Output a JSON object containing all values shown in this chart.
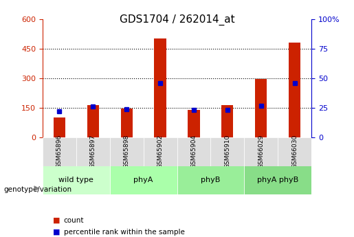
{
  "title": "GDS1704 / 262014_at",
  "samples": [
    "GSM65896",
    "GSM65897",
    "GSM65898",
    "GSM65902",
    "GSM65904",
    "GSM65910",
    "GSM66029",
    "GSM66030"
  ],
  "count_values": [
    100,
    165,
    145,
    500,
    140,
    165,
    295,
    480
  ],
  "percentile_values": [
    22,
    26,
    24,
    46,
    23,
    23,
    27,
    46
  ],
  "groups": [
    {
      "label": "wild type",
      "start": 0,
      "end": 2,
      "color": "#ccffcc"
    },
    {
      "label": "phyA",
      "start": 2,
      "end": 4,
      "color": "#aaffaa"
    },
    {
      "label": "phyB",
      "start": 4,
      "end": 6,
      "color": "#99ee99"
    },
    {
      "label": "phyA phyB",
      "start": 6,
      "end": 8,
      "color": "#88dd88"
    }
  ],
  "left_ylim": [
    0,
    600
  ],
  "right_ylim": [
    0,
    100
  ],
  "left_yticks": [
    0,
    150,
    300,
    450,
    600
  ],
  "right_yticks": [
    0,
    25,
    50,
    75,
    100
  ],
  "left_color": "#cc2200",
  "right_color": "#0000cc",
  "bar_color": "#cc2200",
  "percentile_color": "#0000cc",
  "grid_color": "#000000",
  "xlabel_color": "#555555",
  "bg_color": "#dddddd"
}
